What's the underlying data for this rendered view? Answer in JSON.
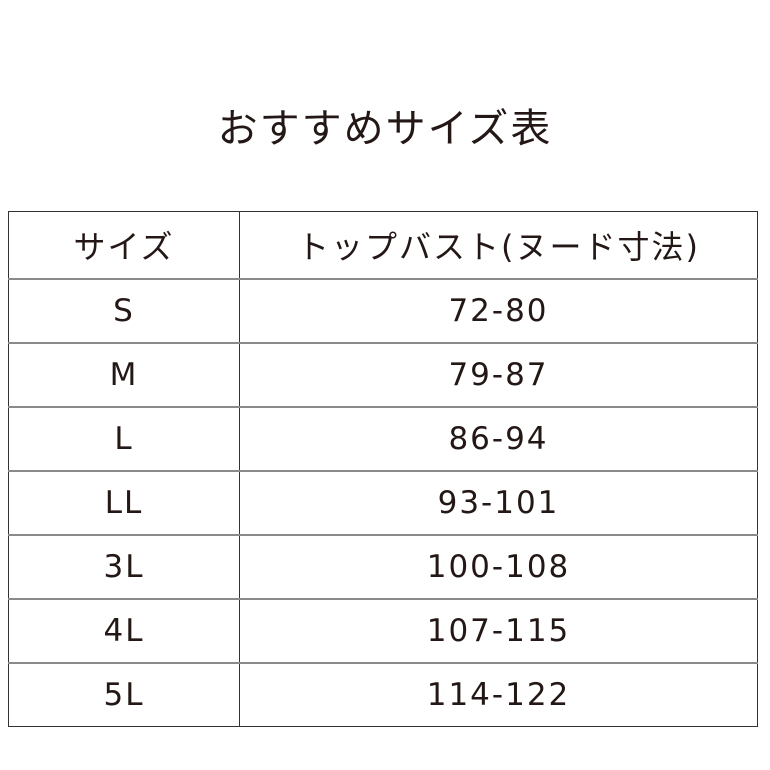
{
  "title": "おすすめサイズ表",
  "table": {
    "headers": [
      "サイズ",
      "トップバスト(ヌード寸法)"
    ],
    "rows": [
      [
        "S",
        "72-80"
      ],
      [
        "M",
        "79-87"
      ],
      [
        "L",
        "86-94"
      ],
      [
        "LL",
        "93-101"
      ],
      [
        "3L",
        "100-108"
      ],
      [
        "4L",
        "107-115"
      ],
      [
        "5L",
        "114-122"
      ]
    ]
  }
}
